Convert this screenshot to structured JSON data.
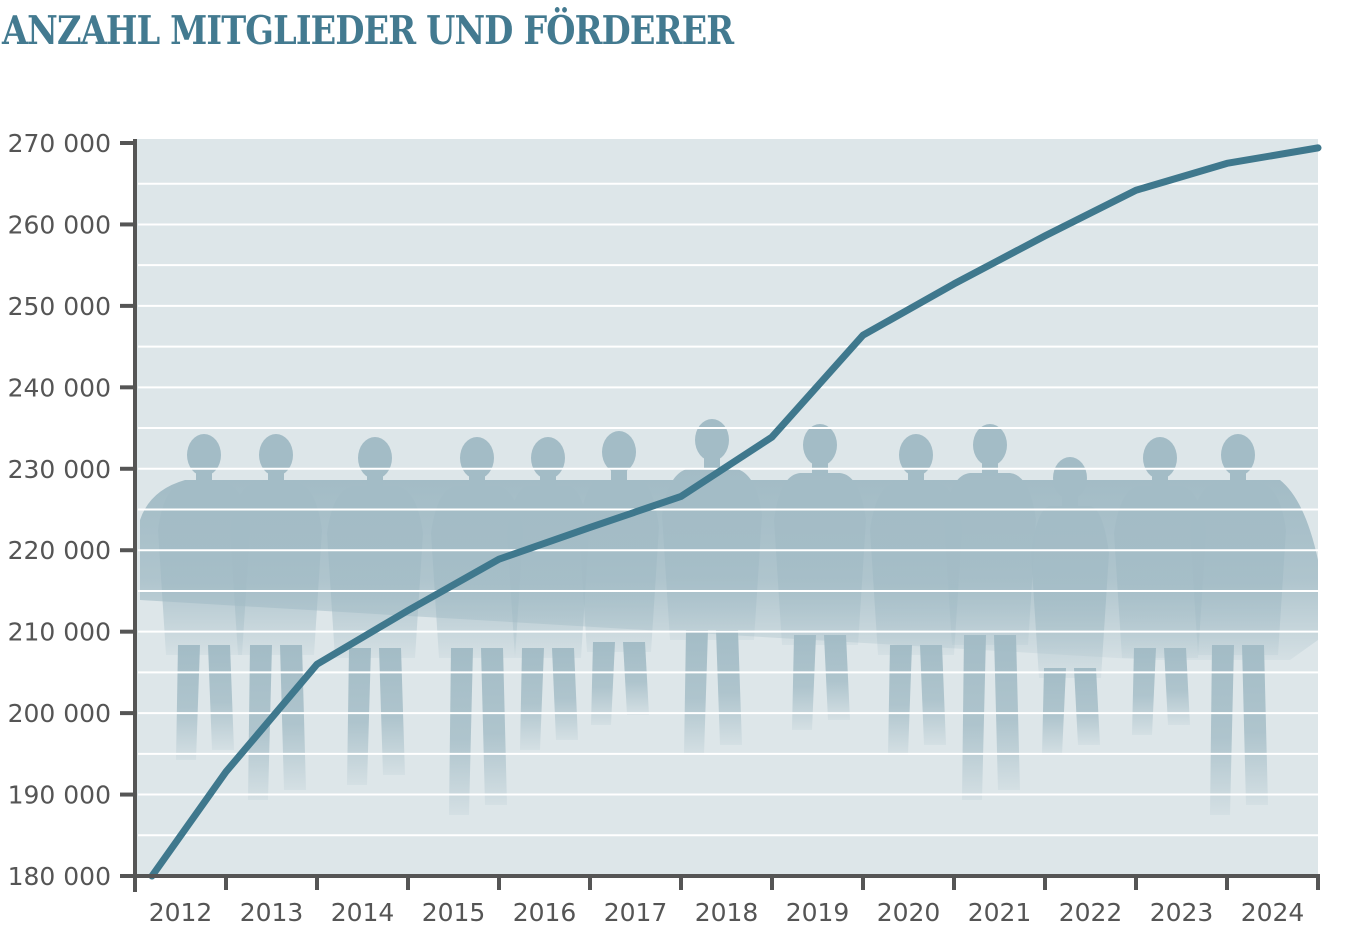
{
  "title": "ANZAHL MITGLIEDER UND FÖRDERER",
  "colors": {
    "title": "#437a90",
    "line": "#3f788d",
    "plot_background": "#dde6e9",
    "silhouettes": "#a3bcc6",
    "axis": "#555555",
    "gridlines": "#ffffff"
  },
  "chart_data": {
    "type": "line",
    "title": "ANZAHL MITGLIEDER UND FÖRDERER",
    "xlabel": "",
    "ylabel": "",
    "categories": [
      "2012",
      "2013",
      "2014",
      "2015",
      "2016",
      "2017",
      "2018",
      "2019",
      "2020",
      "2021",
      "2022",
      "2023",
      "2024"
    ],
    "ylim": [
      180000,
      270000
    ],
    "yticks": [
      180000,
      190000,
      200000,
      210000,
      220000,
      230000,
      240000,
      250000,
      260000,
      270000
    ],
    "ytick_labels": [
      "180 000",
      "190 000",
      "200 000",
      "210 000",
      "220 000",
      "230 000",
      "240 000",
      "250 000",
      "260 000",
      "270 000"
    ],
    "grid": true,
    "legend": "none",
    "series": [
      {
        "name": "Mitglieder und Förderer",
        "x": [
          2011.2,
          2012,
          2013,
          2014,
          2015,
          2016,
          2017,
          2018,
          2019,
          2020,
          2021,
          2022,
          2023,
          2024
        ],
        "values": [
          180000,
          192800,
          206000,
          212600,
          218900,
          222800,
          226600,
          233900,
          246400,
          252700,
          258600,
          264200,
          267500,
          269400
        ]
      }
    ]
  }
}
